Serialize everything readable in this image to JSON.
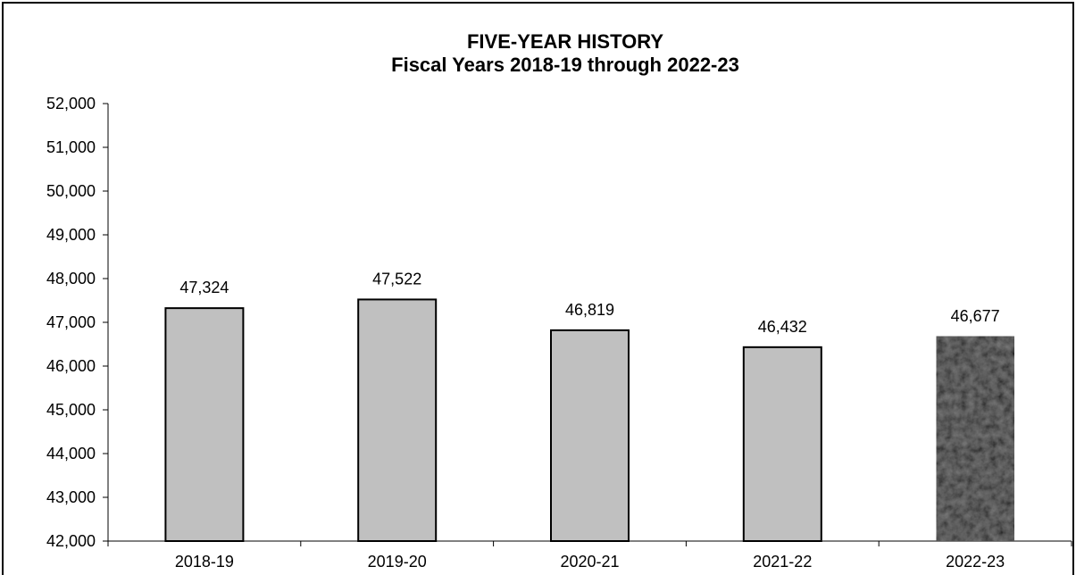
{
  "chart_data": {
    "type": "bar",
    "title": "FIVE-YEAR HISTORY",
    "subtitle": "Fiscal Years 2018-19 through 2022-23",
    "categories": [
      "2018-19",
      "2019-20",
      "2020-21",
      "2021-22",
      "2022-23"
    ],
    "values": [
      47324,
      47522,
      46819,
      46432,
      46677
    ],
    "value_labels": [
      "47,324",
      "47,522",
      "46,819",
      "46,432",
      "46,677"
    ],
    "ylim": [
      42000,
      52000
    ],
    "y_ticks": [
      {
        "value": 42000,
        "label": "42,000"
      },
      {
        "value": 43000,
        "label": "43,000"
      },
      {
        "value": 44000,
        "label": "44,000"
      },
      {
        "value": 45000,
        "label": "45,000"
      },
      {
        "value": 46000,
        "label": "46,000"
      },
      {
        "value": 47000,
        "label": "47,000"
      },
      {
        "value": 48000,
        "label": "48,000"
      },
      {
        "value": 49000,
        "label": "49,000"
      },
      {
        "value": 50000,
        "label": "50,000"
      },
      {
        "value": 51000,
        "label": "51,000"
      },
      {
        "value": 52000,
        "label": "52,000"
      }
    ],
    "xlabel": "",
    "ylabel": "",
    "grid": false,
    "bar_colors": [
      "#c0c0c0",
      "#c0c0c0",
      "#c0c0c0",
      "#c0c0c0",
      "#1a1a1a"
    ],
    "bar_outline_color": "#000000"
  }
}
